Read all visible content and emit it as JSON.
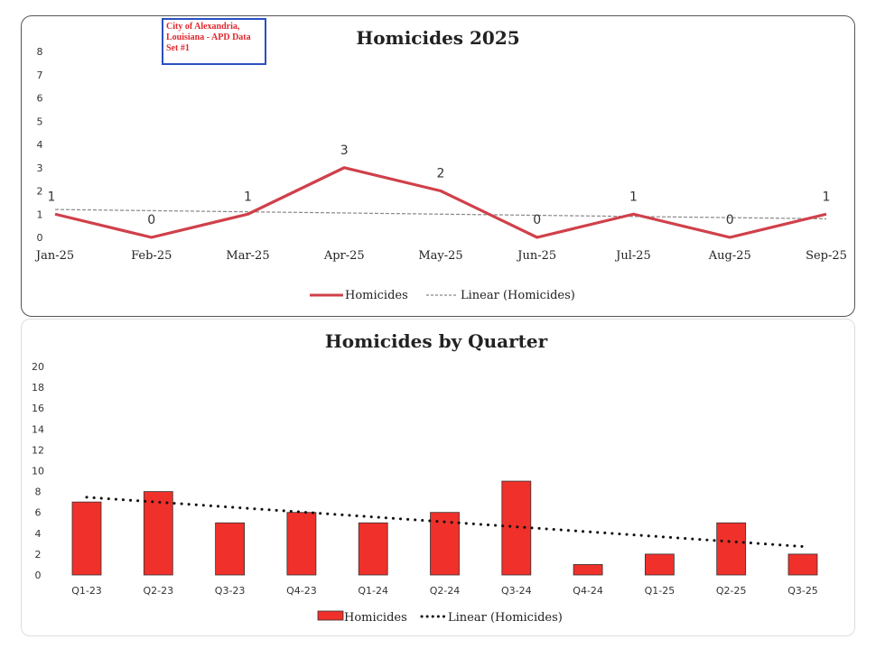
{
  "badge": {
    "text": "City of Alexandria, Louisiana - APD Data Set #1"
  },
  "chart_data": [
    {
      "type": "line",
      "title": "Homicides 2025",
      "categories": [
        "Jan-25",
        "Feb-25",
        "Mar-25",
        "Apr-25",
        "May-25",
        "Jun-25",
        "Jul-25",
        "Aug-25",
        "Sep-25"
      ],
      "series": [
        {
          "name": "Homicides",
          "values": [
            1,
            0,
            1,
            3,
            2,
            0,
            1,
            0,
            1
          ],
          "color": "#d0404a"
        }
      ],
      "trendline": {
        "name": "Linear (Homicides)",
        "type": "linear",
        "style": "dashed",
        "color": "#888888"
      },
      "yticks": [
        0,
        1,
        2,
        3,
        4,
        5,
        6,
        7,
        8
      ],
      "ylim": [
        0,
        8
      ],
      "data_labels": true,
      "grid": false,
      "legend": "bottom"
    },
    {
      "type": "bar",
      "title": "Homicides by Quarter",
      "categories": [
        "Q1-23",
        "Q2-23",
        "Q3-23",
        "Q4-23",
        "Q1-24",
        "Q2-24",
        "Q3-24",
        "Q4-24",
        "Q1-25",
        "Q2-25",
        "Q3-25"
      ],
      "series": [
        {
          "name": "Homicides",
          "values": [
            7,
            8,
            5,
            6,
            5,
            6,
            9,
            1,
            2,
            5,
            2
          ],
          "color": "#f0302a"
        }
      ],
      "trendline": {
        "name": "Linear (Homicides)",
        "type": "linear",
        "style": "dotted",
        "color": "#111111"
      },
      "yticks": [
        0,
        2,
        4,
        6,
        8,
        10,
        12,
        14,
        16,
        18,
        20
      ],
      "ylim": [
        0,
        20
      ],
      "grid": false,
      "legend": "bottom"
    }
  ]
}
